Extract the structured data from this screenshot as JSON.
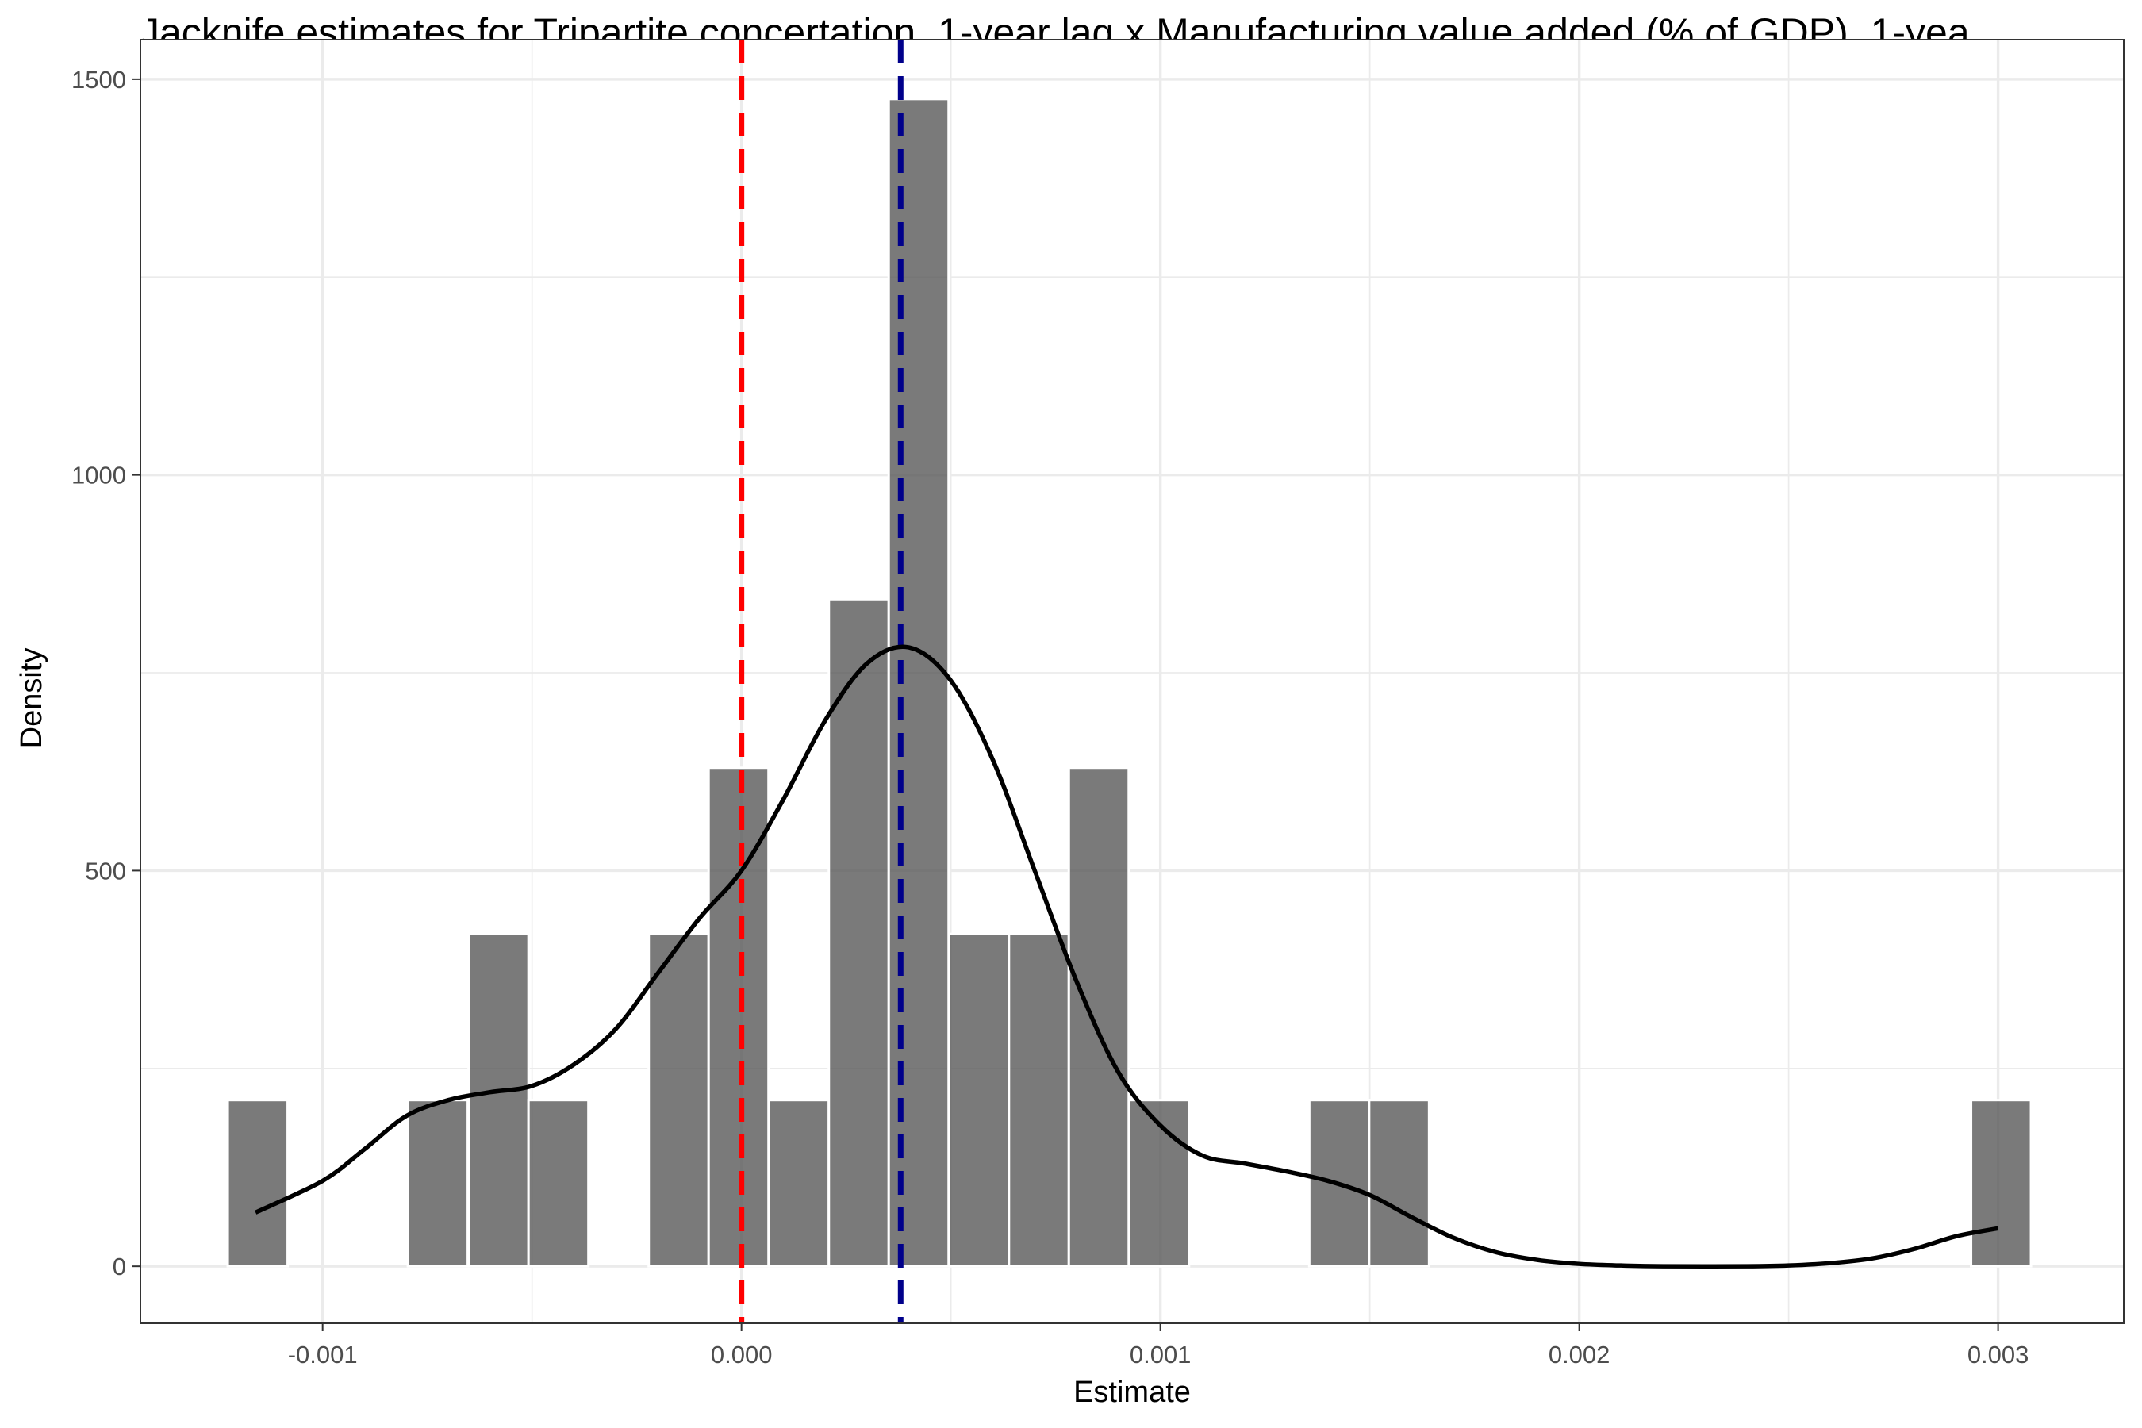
{
  "chart_data": {
    "type": "bar",
    "title": "Jacknife estimates for Tripartite concertation, 1-year lag x Manufacturing value added (% of GDP), 1-yea",
    "xlabel": "Estimate",
    "ylabel": "Density",
    "xlim": [
      -0.001435,
      0.0033
    ],
    "ylim": [
      -72,
      1550
    ],
    "x_ticks": [
      -0.001,
      0.0,
      0.001,
      0.002,
      0.003
    ],
    "x_tick_labels": [
      "-0.001",
      "0.000",
      "0.001",
      "0.002",
      "0.003"
    ],
    "y_ticks": [
      0,
      500,
      1000,
      1500
    ],
    "y_tick_labels": [
      "0",
      "500",
      "1000",
      "1500"
    ],
    "grid": true,
    "bin_width": 0.000143,
    "bins": [
      {
        "x": -0.001155,
        "density": 210
      },
      {
        "x": -0.000725,
        "density": 210
      },
      {
        "x": -0.00058,
        "density": 420
      },
      {
        "x": -0.000437,
        "density": 210
      },
      {
        "x": -0.00015,
        "density": 420
      },
      {
        "x": -7e-06,
        "density": 630
      },
      {
        "x": 0.000137,
        "density": 210
      },
      {
        "x": 0.00028,
        "density": 843
      },
      {
        "x": 0.000423,
        "density": 1475
      },
      {
        "x": 0.000567,
        "density": 420
      },
      {
        "x": 0.00071,
        "density": 420
      },
      {
        "x": 0.000853,
        "density": 630
      },
      {
        "x": 0.000997,
        "density": 210
      },
      {
        "x": 0.001427,
        "density": 210
      },
      {
        "x": 0.00157,
        "density": 210
      },
      {
        "x": 0.003007,
        "density": 210
      }
    ],
    "density_curve": [
      [
        -0.00116,
        68
      ],
      [
        -0.001,
        108
      ],
      [
        -0.0009,
        148
      ],
      [
        -0.0008,
        190
      ],
      [
        -0.0007,
        210
      ],
      [
        -0.0006,
        220
      ],
      [
        -0.0005,
        228
      ],
      [
        -0.0004,
        255
      ],
      [
        -0.0003,
        300
      ],
      [
        -0.0002,
        370
      ],
      [
        -0.0001,
        440
      ],
      [
        0.0,
        500
      ],
      [
        0.0001,
        590
      ],
      [
        0.0002,
        690
      ],
      [
        0.0003,
        762
      ],
      [
        0.0004,
        782
      ],
      [
        0.0005,
        740
      ],
      [
        0.0006,
        640
      ],
      [
        0.0007,
        500
      ],
      [
        0.0008,
        360
      ],
      [
        0.0009,
        245
      ],
      [
        0.001,
        178
      ],
      [
        0.0011,
        140
      ],
      [
        0.0012,
        130
      ],
      [
        0.0013,
        120
      ],
      [
        0.0014,
        108
      ],
      [
        0.0015,
        90
      ],
      [
        0.0016,
        62
      ],
      [
        0.0017,
        36
      ],
      [
        0.0018,
        18
      ],
      [
        0.0019,
        8
      ],
      [
        0.002,
        3
      ],
      [
        0.0021,
        1
      ],
      [
        0.0022,
        0
      ],
      [
        0.0024,
        0
      ],
      [
        0.0025,
        1
      ],
      [
        0.0026,
        4
      ],
      [
        0.0027,
        10
      ],
      [
        0.0028,
        22
      ],
      [
        0.0029,
        38
      ],
      [
        0.003,
        48
      ]
    ],
    "reference_lines": [
      {
        "x": 0.0,
        "color": "#ff0000",
        "style": "dashed"
      },
      {
        "x": 0.00038,
        "color": "#00008b",
        "style": "dashed"
      }
    ],
    "colors": {
      "bar_fill": "#595959",
      "bar_opacity": 0.8,
      "curve": "#000000"
    }
  }
}
